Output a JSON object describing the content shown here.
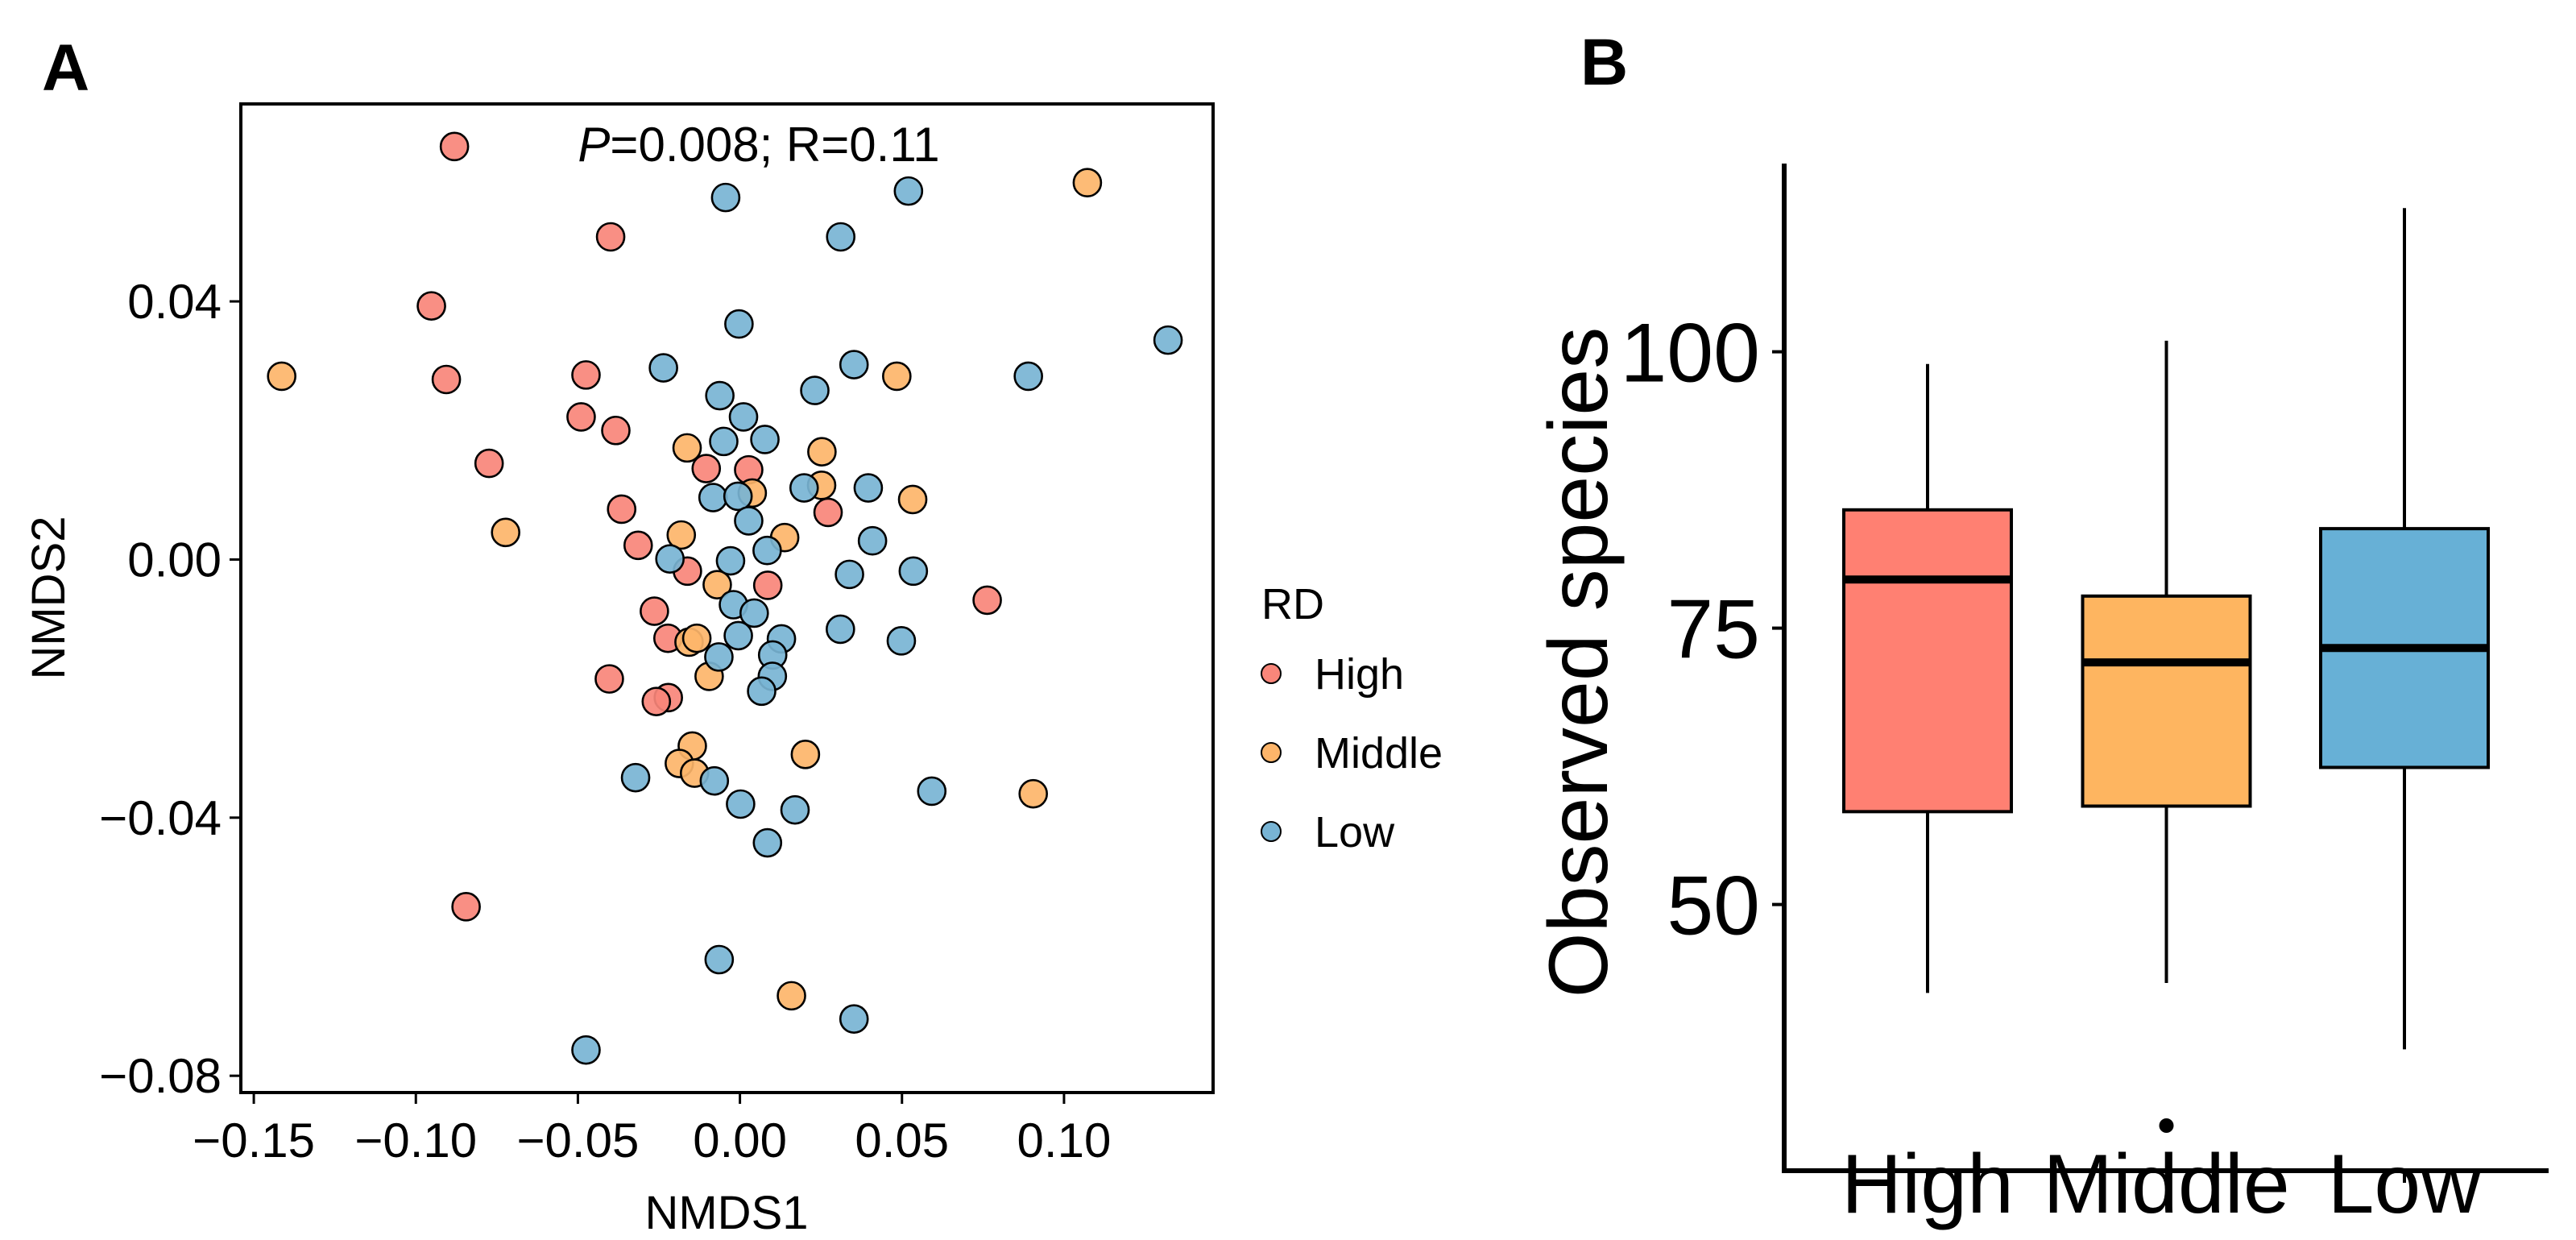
{
  "chart_data": [
    {
      "panel": "A",
      "type": "scatter",
      "annotation": {
        "p_label": "P",
        "rest": "=0.008; R=0.11"
      },
      "xlabel": "NMDS1",
      "ylabel": "NMDS2",
      "xlim": [
        -0.154,
        0.146
      ],
      "ylim": [
        -0.0826,
        0.0706
      ],
      "xticks": [
        -0.15,
        -0.1,
        -0.05,
        0.0,
        0.05,
        0.1
      ],
      "xtick_labels": [
        "−0.15",
        "−0.10",
        "−0.05",
        "0.00",
        "0.05",
        "0.10"
      ],
      "yticks": [
        0.04,
        0.0,
        -0.04,
        -0.08
      ],
      "ytick_labels": [
        "0.04",
        "0.00",
        "−0.04",
        "−0.08"
      ],
      "grid": false,
      "legend": {
        "title": "RD",
        "placement": "right"
      },
      "series": [
        {
          "name": "High",
          "color": "#F9867A",
          "points": [
            [
              -0.049,
              0.0221
            ],
            [
              -0.0383,
              0.02
            ],
            [
              -0.0104,
              0.0141
            ],
            [
              0.0027,
              0.0139
            ],
            [
              -0.0365,
              0.0078
            ],
            [
              0.0272,
              0.0073
            ],
            [
              -0.0314,
              0.0022
            ],
            [
              -0.0162,
              -0.0018
            ],
            [
              0.0086,
              -0.004
            ],
            [
              0.0763,
              -0.0063
            ],
            [
              -0.0264,
              -0.008
            ],
            [
              -0.0222,
              -0.0122
            ],
            [
              -0.0403,
              -0.0185
            ],
            [
              -0.0221,
              -0.0214
            ],
            [
              -0.0258,
              -0.022
            ],
            [
              -0.0881,
              0.064
            ],
            [
              -0.0399,
              0.05
            ],
            [
              -0.0952,
              0.0393
            ],
            [
              -0.0475,
              0.0286
            ],
            [
              -0.0906,
              0.0279
            ],
            [
              -0.0774,
              0.0149
            ],
            [
              -0.0845,
              -0.0538
            ]
          ]
        },
        {
          "name": "Middle",
          "color": "#FDB56A",
          "points": [
            [
              -0.0163,
              0.0173
            ],
            [
              0.0253,
              0.0167
            ],
            [
              0.0038,
              0.0103
            ],
            [
              0.0252,
              0.0115
            ],
            [
              0.0533,
              0.0093
            ],
            [
              -0.0181,
              0.0038
            ],
            [
              0.0138,
              0.0034
            ],
            [
              -0.007,
              -0.0039
            ],
            [
              -0.0157,
              -0.0128
            ],
            [
              -0.0133,
              -0.0122
            ],
            [
              -0.0095,
              -0.0181
            ],
            [
              -0.0147,
              -0.0289
            ],
            [
              -0.0187,
              -0.0316
            ],
            [
              -0.014,
              -0.0331
            ],
            [
              0.0202,
              -0.0302
            ],
            [
              -0.1414,
              0.0284
            ],
            [
              0.1072,
              0.0584
            ],
            [
              0.0484,
              0.0284
            ],
            [
              -0.0723,
              0.0042
            ],
            [
              0.0905,
              -0.0363
            ],
            [
              0.0159,
              -0.0676
            ]
          ]
        },
        {
          "name": "Low",
          "color": "#78B4D4",
          "points": [
            [
              -0.0062,
              0.0254
            ],
            [
              0.0231,
              0.0262
            ],
            [
              0.0011,
              0.0221
            ],
            [
              -0.005,
              0.0183
            ],
            [
              0.0077,
              0.0186
            ],
            [
              -0.0083,
              0.0096
            ],
            [
              -0.0006,
              0.0098
            ],
            [
              0.0198,
              0.0111
            ],
            [
              0.0396,
              0.0111
            ],
            [
              0.0027,
              0.006
            ],
            [
              0.0409,
              0.0029
            ],
            [
              -0.0216,
              0.0001
            ],
            [
              -0.0029,
              -0.0002
            ],
            [
              0.0084,
              0.0014
            ],
            [
              0.0338,
              -0.0023
            ],
            [
              0.0535,
              -0.0018
            ],
            [
              -0.002,
              -0.007
            ],
            [
              0.0044,
              -0.0083
            ],
            [
              -0.0005,
              -0.0118
            ],
            [
              0.031,
              -0.0108
            ],
            [
              0.0498,
              -0.0126
            ],
            [
              0.0128,
              -0.0123
            ],
            [
              0.0101,
              -0.0148
            ],
            [
              -0.0065,
              -0.0151
            ],
            [
              0.01,
              -0.0181
            ],
            [
              0.0067,
              -0.0204
            ],
            [
              -0.0322,
              -0.0338
            ],
            [
              -0.0079,
              -0.0343
            ],
            [
              0.0002,
              -0.0379
            ],
            [
              0.017,
              -0.0388
            ],
            [
              0.0592,
              -0.0359
            ],
            [
              0.0085,
              -0.0439
            ],
            [
              -0.0044,
              0.0561
            ],
            [
              0.052,
              0.0571
            ],
            [
              0.0311,
              0.05
            ],
            [
              0.1321,
              0.034
            ],
            [
              -0.0003,
              0.0365
            ],
            [
              -0.0236,
              0.0297
            ],
            [
              0.0352,
              0.0302
            ],
            [
              0.089,
              0.0284
            ],
            [
              -0.0064,
              -0.062
            ],
            [
              0.0352,
              -0.0712
            ],
            [
              -0.0475,
              -0.076
            ]
          ]
        }
      ]
    },
    {
      "panel": "B",
      "type": "box",
      "ylabel": "Observed species",
      "xlabel": "",
      "ylim": [
        25.9,
        117
      ],
      "yticks": [
        50,
        75,
        100
      ],
      "ytick_labels": [
        "50",
        "75",
        "100"
      ],
      "grid": false,
      "categories": [
        "High",
        "Middle",
        "Low"
      ],
      "boxes": [
        {
          "name": "High",
          "color": "#FF8072",
          "whisker_low": 42.0,
          "q1": 58.4,
          "median": 79.4,
          "q3": 85.7,
          "whisker_high": 98.9,
          "outliers": []
        },
        {
          "name": "Middle",
          "color": "#FEB560",
          "whisker_low": 42.9,
          "q1": 58.9,
          "median": 71.9,
          "q3": 77.9,
          "whisker_high": 101.0,
          "outliers": [
            30.0
          ]
        },
        {
          "name": "Low",
          "color": "#67B0D6",
          "whisker_low": 36.9,
          "q1": 62.4,
          "median": 73.2,
          "q3": 84.0,
          "whisker_high": 113.0,
          "outliers": []
        }
      ]
    }
  ]
}
